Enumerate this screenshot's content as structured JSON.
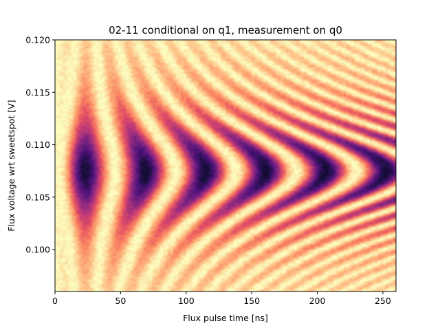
{
  "chart_data": {
    "type": "heatmap",
    "title": "02-11 conditional on q1, measurement on q0",
    "xlabel": "Flux pulse time [ns]",
    "ylabel": "Flux voltage wrt sweetspot [V]",
    "xlim": [
      0,
      260
    ],
    "ylim": [
      0.096,
      0.12
    ],
    "x_ticks": [
      0,
      50,
      100,
      150,
      200,
      250
    ],
    "x_tick_labels": [
      "0",
      "50",
      "100",
      "150",
      "200",
      "250"
    ],
    "y_ticks": [
      0.1,
      0.105,
      0.11,
      0.115,
      0.12
    ],
    "y_tick_labels": [
      "0.100",
      "0.105",
      "0.110",
      "0.115",
      "0.120"
    ],
    "colormap": "magma",
    "grid": false,
    "legend": "none",
    "pattern": {
      "resonance_voltage": 0.1075,
      "oscillation_period_ns": 46,
      "first_minimum_time_ns": 23,
      "minima_times_ns": [
        23,
        69,
        115,
        161,
        207,
        253
      ]
    }
  }
}
